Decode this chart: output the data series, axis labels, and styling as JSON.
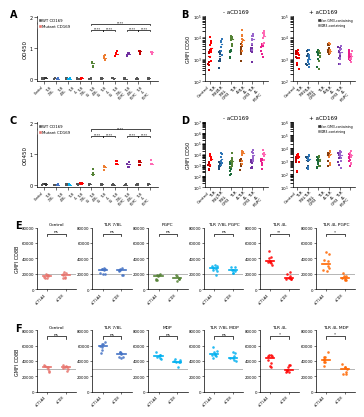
{
  "background_color": "#FFFFFF",
  "panel_labels": [
    "A",
    "B",
    "C",
    "D",
    "E",
    "F"
  ],
  "ac_group_colors": [
    "#333333",
    "#4472C4",
    "#00B0F0",
    "#FF0000",
    "#548235",
    "#ED7D31",
    "#FF0000",
    "#7030A0",
    "#C00000",
    "#FF69B4"
  ],
  "b_non_gm3_cols": [
    "#C00000",
    "#1F4E79",
    "#1B6B3A",
    "#843C0C",
    "#7030A0",
    "#E91E8C"
  ],
  "b_gm3_cols": [
    "#FF0000",
    "#2E75B6",
    "#548235",
    "#ED7D31",
    "#9966CC",
    "#FF69B4"
  ],
  "e_colors": [
    "#E8736C",
    "#4472C4",
    "#548235",
    "#00B0F0",
    "#FF0000",
    "#FF6600"
  ],
  "f_colors": [
    "#E8736C",
    "#4472C4",
    "#00B0F0",
    "#00B0F0",
    "#FF0000",
    "#FF6600"
  ],
  "e_titles": [
    "Control",
    "TLR 7/8L",
    "PGPC",
    "TLR 7/8L PGPC",
    "TLR 4L",
    "TLR 4L PGPC"
  ],
  "f_titles": [
    "Control",
    "TLR 7/8L",
    "MDP",
    "TLR 7/8L MDP",
    "TLR 4L",
    "TLR 4L MDP"
  ],
  "ef_sig_E": [
    "ns",
    "ns",
    "ns",
    "ns",
    "**",
    "*"
  ],
  "ef_sig_F": [
    "ns",
    "ns",
    "ns",
    "ns",
    "*",
    "*"
  ],
  "b_groups": [
    "Control",
    "TLR\n7/8L",
    "TLR\n7/8L\nGM3",
    "TLR\n4L",
    "TLR\n4L\nGM3",
    "TLR\n4L\nPGPC"
  ],
  "ac_xlabels": [
    "Control",
    "TLR\n7/8L",
    "TLR\n4/8L",
    "TLR\n4L",
    "TLR\n7/8L\nC5",
    "TLR\n4/8L\nC5",
    "TLR\n4L\nC5",
    "TLR\n7/8L\nPGPC",
    "TLR\n4/8L\nPGPC",
    "TLR\n4L\nPGPC"
  ]
}
